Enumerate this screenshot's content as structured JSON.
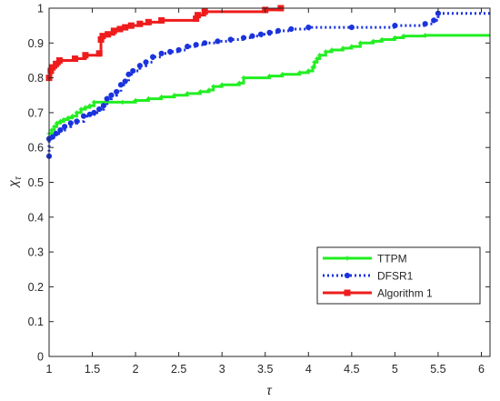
{
  "chart_data": {
    "type": "line",
    "title": "",
    "xlabel": "τ",
    "ylabel": "χ",
    "ylabel_subscript": "τ",
    "xlim": [
      1,
      6.1
    ],
    "ylim": [
      0,
      1
    ],
    "xticks": [
      1,
      1.5,
      2,
      2.5,
      3,
      3.5,
      4,
      4.5,
      5,
      5.5,
      6
    ],
    "xtick_labels": [
      "1",
      "1.5",
      "2",
      "2.5",
      "3",
      "3.5",
      "4",
      "4.5",
      "5",
      "5.5",
      "6"
    ],
    "yticks": [
      0,
      0.1,
      0.2,
      0.3,
      0.4,
      0.5,
      0.6,
      0.7,
      0.8,
      0.9,
      1
    ],
    "ytick_labels": [
      "0",
      "0.1",
      "0.2",
      "0.3",
      "0.4",
      "0.5",
      "0.6",
      "0.7",
      "0.8",
      "0.9",
      "1"
    ],
    "grid": false,
    "legend_position": "bottom-right",
    "series": [
      {
        "name": "TTPM",
        "color": "#22ee22",
        "line_style": "solid",
        "marker": "plus",
        "points": [
          [
            1.0,
            0.64
          ],
          [
            1.03,
            0.65
          ],
          [
            1.06,
            0.66
          ],
          [
            1.09,
            0.67
          ],
          [
            1.13,
            0.675
          ],
          [
            1.17,
            0.68
          ],
          [
            1.22,
            0.685
          ],
          [
            1.27,
            0.69
          ],
          [
            1.32,
            0.7
          ],
          [
            1.37,
            0.71
          ],
          [
            1.42,
            0.715
          ],
          [
            1.47,
            0.72
          ],
          [
            1.52,
            0.73
          ],
          [
            1.85,
            0.73
          ],
          [
            2.0,
            0.735
          ],
          [
            2.15,
            0.74
          ],
          [
            2.3,
            0.745
          ],
          [
            2.45,
            0.75
          ],
          [
            2.6,
            0.755
          ],
          [
            2.75,
            0.76
          ],
          [
            2.85,
            0.765
          ],
          [
            2.9,
            0.775
          ],
          [
            3.0,
            0.78
          ],
          [
            3.2,
            0.785
          ],
          [
            3.25,
            0.8
          ],
          [
            3.55,
            0.805
          ],
          [
            3.7,
            0.81
          ],
          [
            3.9,
            0.815
          ],
          [
            4.0,
            0.82
          ],
          [
            4.05,
            0.83
          ],
          [
            4.07,
            0.845
          ],
          [
            4.1,
            0.855
          ],
          [
            4.13,
            0.865
          ],
          [
            4.2,
            0.875
          ],
          [
            4.27,
            0.88
          ],
          [
            4.4,
            0.885
          ],
          [
            4.5,
            0.89
          ],
          [
            4.6,
            0.9
          ],
          [
            4.75,
            0.905
          ],
          [
            4.85,
            0.91
          ],
          [
            5.0,
            0.915
          ],
          [
            5.1,
            0.92
          ],
          [
            5.35,
            0.922
          ],
          [
            6.1,
            0.922
          ]
        ]
      },
      {
        "name": "DFSR1",
        "color": "#1a33dd",
        "line_style": "dotted",
        "marker": "dot",
        "points": [
          [
            1.0,
            0.575
          ],
          [
            1.0,
            0.625
          ],
          [
            1.04,
            0.63
          ],
          [
            1.08,
            0.64
          ],
          [
            1.13,
            0.65
          ],
          [
            1.18,
            0.66
          ],
          [
            1.25,
            0.67
          ],
          [
            1.32,
            0.675
          ],
          [
            1.4,
            0.69
          ],
          [
            1.47,
            0.695
          ],
          [
            1.52,
            0.7
          ],
          [
            1.58,
            0.71
          ],
          [
            1.63,
            0.72
          ],
          [
            1.67,
            0.74
          ],
          [
            1.72,
            0.75
          ],
          [
            1.78,
            0.76
          ],
          [
            1.83,
            0.78
          ],
          [
            1.88,
            0.79
          ],
          [
            1.92,
            0.81
          ],
          [
            1.97,
            0.82
          ],
          [
            2.05,
            0.835
          ],
          [
            2.12,
            0.845
          ],
          [
            2.2,
            0.86
          ],
          [
            2.3,
            0.87
          ],
          [
            2.4,
            0.875
          ],
          [
            2.5,
            0.88
          ],
          [
            2.6,
            0.89
          ],
          [
            2.7,
            0.895
          ],
          [
            2.8,
            0.9
          ],
          [
            2.95,
            0.905
          ],
          [
            3.1,
            0.91
          ],
          [
            3.25,
            0.915
          ],
          [
            3.35,
            0.92
          ],
          [
            3.45,
            0.925
          ],
          [
            3.55,
            0.93
          ],
          [
            3.65,
            0.935
          ],
          [
            3.8,
            0.94
          ],
          [
            4.0,
            0.945
          ],
          [
            4.5,
            0.945
          ],
          [
            5.0,
            0.95
          ],
          [
            5.35,
            0.955
          ],
          [
            5.45,
            0.965
          ],
          [
            5.5,
            0.985
          ],
          [
            6.1,
            0.985
          ]
        ]
      },
      {
        "name": "Algorithm 1",
        "color": "#ee1c1c",
        "line_style": "solid",
        "marker": "square",
        "points": [
          [
            1.0,
            0.8
          ],
          [
            1.02,
            0.82
          ],
          [
            1.04,
            0.83
          ],
          [
            1.08,
            0.84
          ],
          [
            1.12,
            0.85
          ],
          [
            1.3,
            0.855
          ],
          [
            1.42,
            0.865
          ],
          [
            1.58,
            0.87
          ],
          [
            1.6,
            0.91
          ],
          [
            1.62,
            0.92
          ],
          [
            1.68,
            0.925
          ],
          [
            1.75,
            0.935
          ],
          [
            1.82,
            0.94
          ],
          [
            1.88,
            0.945
          ],
          [
            1.95,
            0.95
          ],
          [
            2.05,
            0.955
          ],
          [
            2.15,
            0.96
          ],
          [
            2.3,
            0.965
          ],
          [
            2.7,
            0.97
          ],
          [
            2.72,
            0.98
          ],
          [
            2.8,
            0.99
          ],
          [
            3.5,
            0.995
          ],
          [
            3.68,
            1.0
          ]
        ]
      }
    ]
  }
}
